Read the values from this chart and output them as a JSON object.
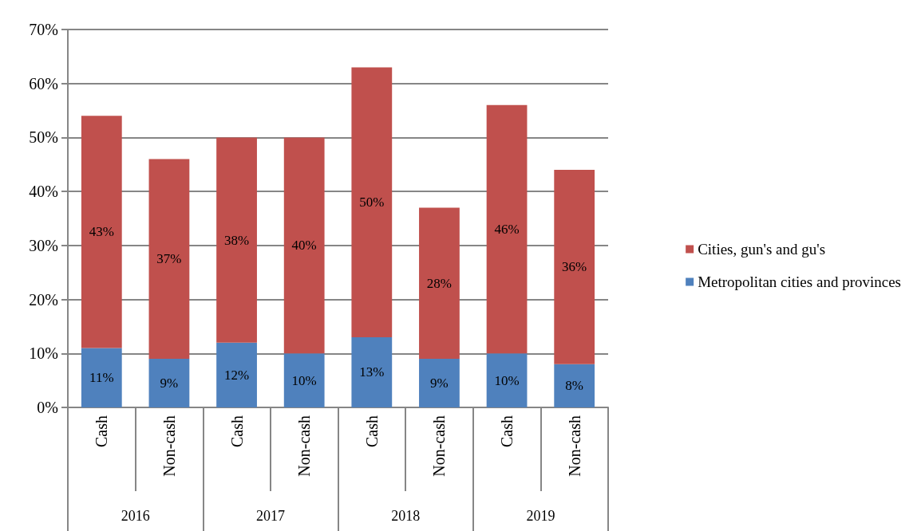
{
  "chart_data": {
    "type": "bar",
    "stacked": true,
    "categories": [
      "Cash",
      "Non-cash",
      "Cash",
      "Non-cash",
      "Cash",
      "Non-cash",
      "Cash",
      "Non-cash"
    ],
    "annotations": [
      "2016",
      "2017",
      "2018",
      "2019"
    ],
    "series": [
      {
        "name": "Metropolitan cities and provinces",
        "color": "#4f81bd",
        "values": [
          11,
          9,
          12,
          10,
          13,
          9,
          10,
          8
        ],
        "value_labels": [
          "11%",
          "9%",
          "12%",
          "10%",
          "13%",
          "9%",
          "10%",
          "8%"
        ]
      },
      {
        "name": "Cities, gun's and gu's",
        "color": "#c0504d",
        "values": [
          43,
          37,
          38,
          40,
          50,
          28,
          46,
          36
        ],
        "value_labels": [
          "43%",
          "37%",
          "38%",
          "40%",
          "50%",
          "28%",
          "46%",
          "36%"
        ]
      }
    ],
    "ylim": [
      0,
      70
    ],
    "yticks": [
      {
        "value": 0,
        "label": "0%"
      },
      {
        "value": 10,
        "label": "10%"
      },
      {
        "value": 20,
        "label": "20%"
      },
      {
        "value": 30,
        "label": "30%"
      },
      {
        "value": 40,
        "label": "40%"
      },
      {
        "value": 50,
        "label": "50%"
      },
      {
        "value": 60,
        "label": "60%"
      },
      {
        "value": 70,
        "label": "70%"
      }
    ],
    "grid": "y",
    "legend": "right"
  }
}
